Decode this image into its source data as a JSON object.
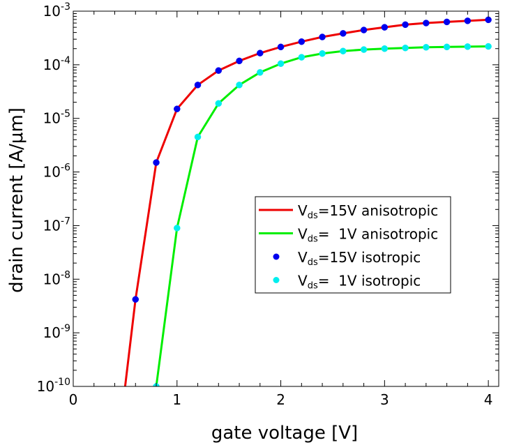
{
  "chart_data": {
    "type": "line",
    "xlabel": "gate voltage [V]",
    "ylabel": "drain current [A/μm]",
    "xlim": [
      0,
      4.1
    ],
    "ylim_log10": [
      -10,
      -3
    ],
    "yscale": "log",
    "x_ticks": [
      {
        "value": 0,
        "label": "0"
      },
      {
        "value": 1,
        "label": "1"
      },
      {
        "value": 2,
        "label": "2"
      },
      {
        "value": 3,
        "label": "3"
      },
      {
        "value": 4,
        "label": "4"
      }
    ],
    "y_ticks": [
      {
        "exp": -3,
        "base": "10",
        "sup": "-3"
      },
      {
        "exp": -4,
        "base": "10",
        "sup": "-4"
      },
      {
        "exp": -5,
        "base": "10",
        "sup": "-5"
      },
      {
        "exp": -6,
        "base": "10",
        "sup": "-6"
      },
      {
        "exp": -7,
        "base": "10",
        "sup": "-7"
      },
      {
        "exp": -8,
        "base": "10",
        "sup": "-8"
      },
      {
        "exp": -9,
        "base": "10",
        "sup": "-9"
      },
      {
        "exp": -10,
        "base": "10",
        "sup": "-10"
      }
    ],
    "legend_position": "center-right",
    "legend": [
      {
        "v": "V",
        "sub": "ds",
        "rest": "=15V anisotropic",
        "style": "line",
        "color": "#ee0000"
      },
      {
        "v": "V",
        "sub": "ds",
        "rest": "=  1V anisotropic",
        "style": "line",
        "color": "#00ee00"
      },
      {
        "v": "V",
        "sub": "ds",
        "rest": "=15V isotropic",
        "style": "marker",
        "color": "#0000ee"
      },
      {
        "v": "V",
        "sub": "ds",
        "rest": "=  1V isotropic",
        "style": "marker",
        "color": "#00eeee"
      }
    ],
    "series": [
      {
        "name": "Vds=15V anisotropic",
        "kind": "line",
        "color": "#ee0000",
        "x": [
          0.5,
          0.6,
          0.8,
          1.0,
          1.2,
          1.4,
          1.6,
          1.8,
          2.0,
          2.2,
          2.4,
          2.6,
          2.8,
          3.0,
          3.2,
          3.4,
          3.6,
          3.8,
          4.0
        ],
        "y": [
          1e-10,
          4.2e-09,
          1.5e-06,
          1.5e-05,
          4.2e-05,
          7.8e-05,
          0.000118,
          0.000165,
          0.000215,
          0.00027,
          0.00033,
          0.000385,
          0.000445,
          0.0005,
          0.00056,
          0.0006,
          0.00063,
          0.00066,
          0.00069
        ]
      },
      {
        "name": "Vds=1V anisotropic",
        "kind": "line",
        "color": "#00ee00",
        "x": [
          0.8,
          1.0,
          1.2,
          1.4,
          1.6,
          1.8,
          2.0,
          2.2,
          2.4,
          2.6,
          2.8,
          3.0,
          3.2,
          3.4,
          3.6,
          3.8,
          4.0
        ],
        "y": [
          1e-10,
          9e-08,
          4.5e-06,
          1.9e-05,
          4.2e-05,
          7.2e-05,
          0.000105,
          0.000138,
          0.000162,
          0.00018,
          0.000192,
          0.0002,
          0.000206,
          0.000212,
          0.000215,
          0.000218,
          0.00022
        ]
      },
      {
        "name": "Vds=15V isotropic",
        "kind": "marker",
        "color": "#0000ee",
        "x": [
          0.6,
          0.8,
          1.0,
          1.2,
          1.4,
          1.6,
          1.8,
          2.0,
          2.2,
          2.4,
          2.6,
          2.8,
          3.0,
          3.2,
          3.4,
          3.6,
          3.8,
          4.0
        ],
        "y": [
          4.2e-09,
          1.5e-06,
          1.5e-05,
          4.2e-05,
          7.8e-05,
          0.000118,
          0.000165,
          0.000215,
          0.00027,
          0.00033,
          0.000385,
          0.000445,
          0.0005,
          0.00056,
          0.0006,
          0.00063,
          0.00066,
          0.00069
        ]
      },
      {
        "name": "Vds=1V isotropic",
        "kind": "marker",
        "color": "#00eeee",
        "x": [
          0.8,
          1.0,
          1.2,
          1.4,
          1.6,
          1.8,
          2.0,
          2.2,
          2.4,
          2.6,
          2.8,
          3.0,
          3.2,
          3.4,
          3.6,
          3.8,
          4.0
        ],
        "y": [
          1e-10,
          9e-08,
          4.5e-06,
          1.9e-05,
          4.2e-05,
          7.2e-05,
          0.000105,
          0.000138,
          0.000162,
          0.00018,
          0.000192,
          0.0002,
          0.000206,
          0.000212,
          0.000215,
          0.000218,
          0.00022
        ]
      }
    ]
  }
}
